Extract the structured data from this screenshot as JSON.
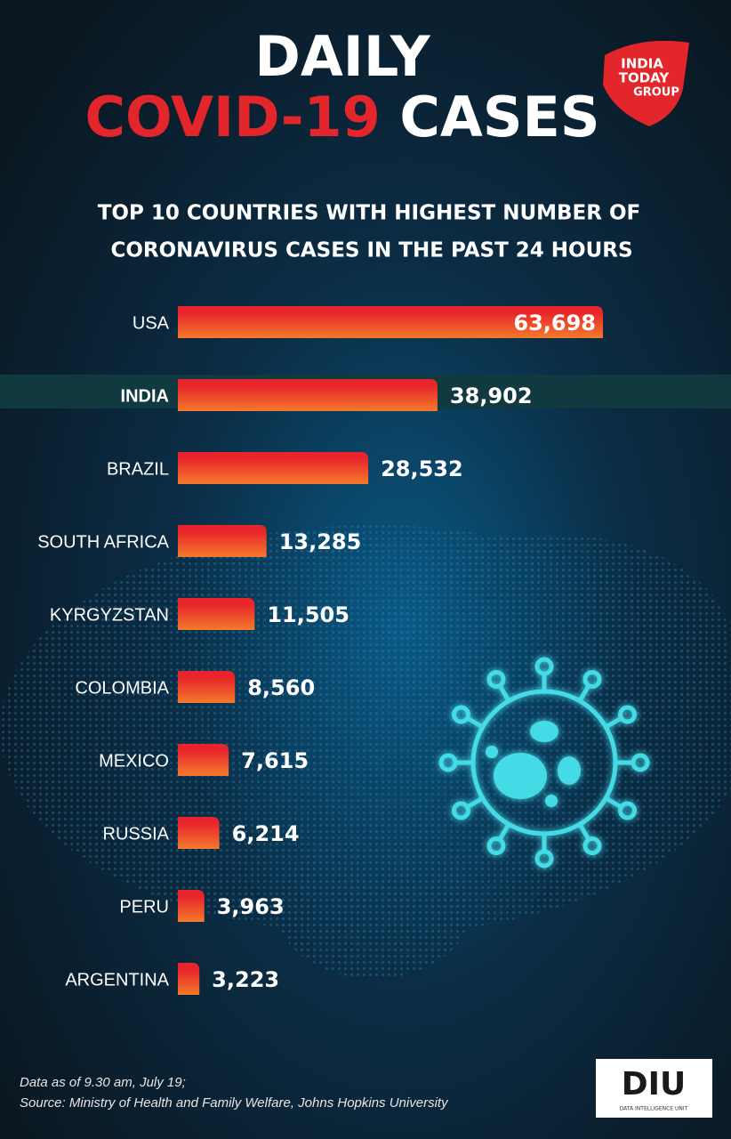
{
  "chart_data": {
    "type": "bar",
    "orientation": "horizontal",
    "title": [
      "DAILY",
      "COVID-19",
      "CASES"
    ],
    "subtitle": [
      "TOP 10 COUNTRIES WITH HIGHEST NUMBER OF",
      "CORONAVIRUS CASES IN THE PAST 24 HOURS"
    ],
    "categories": [
      "USA",
      "INDIA",
      "BRAZIL",
      "SOUTH AFRICA",
      "KYRGYZSTAN",
      "COLOMBIA",
      "MEXICO",
      "RUSSIA",
      "PERU",
      "ARGENTINA"
    ],
    "values": [
      63698,
      38902,
      28532,
      13285,
      11505,
      8560,
      7615,
      6214,
      3963,
      3223
    ],
    "value_labels": [
      "63,698",
      "38,902",
      "28,532",
      "13,285",
      "11,505",
      "8,560",
      "7,615",
      "6,214",
      "3,963",
      "3,223"
    ],
    "color": "#e8252b",
    "color2": "#f47a2c",
    "highlight": 1,
    "highlight_color": "#f2e62a"
  },
  "logo": [
    "INDIA",
    "TODAY",
    "GROUP"
  ],
  "badge": {
    "mark": "DIU",
    "caption": "DATA INTELLIGENCE UNIT"
  },
  "footnote": [
    "Data as of 9.30 am, July 19;",
    "Source: Ministry of Health and Family Welfare, Johns Hopkins University"
  ]
}
